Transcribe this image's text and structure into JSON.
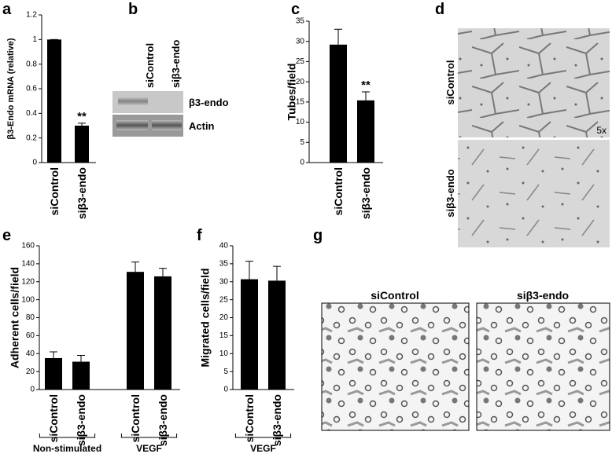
{
  "chart_data": [
    {
      "type": "bar",
      "panel": "a",
      "y_label": "β3-Endo mRNA (relative)",
      "categories": [
        "siControl",
        "siβ3-endo"
      ],
      "values": [
        1,
        0.3
      ],
      "errors": [
        0,
        0.02
      ],
      "annotations": [
        null,
        "**"
      ],
      "color": "#000000",
      "ylim": [
        0,
        1.2
      ],
      "yticks": [
        0,
        0.2,
        0.4,
        0.6,
        0.8,
        1,
        1.2
      ]
    },
    {
      "type": "bar",
      "panel": "c",
      "y_label": "Tubes/field",
      "categories": [
        "siControl",
        "siβ3-endo"
      ],
      "values": [
        29.2,
        15.4
      ],
      "errors": [
        3.8,
        2.1
      ],
      "annotations": [
        null,
        "**"
      ],
      "color": "#000000",
      "ylim": [
        0,
        35
      ],
      "yticks": [
        0,
        5,
        10,
        15,
        20,
        25,
        30,
        35
      ]
    },
    {
      "type": "bar",
      "panel": "e",
      "y_label": "Adherent cells/field",
      "groups": [
        {
          "name": "Non-stimulated",
          "categories": [
            "siControl",
            "siβ3-endo"
          ],
          "values": [
            35,
            31
          ],
          "errors": [
            7,
            7
          ]
        },
        {
          "name": "VEGF",
          "categories": [
            "siControl",
            "siβ3-endo"
          ],
          "values": [
            131,
            126
          ],
          "errors": [
            11,
            9
          ]
        }
      ],
      "color": "#000000",
      "ylim": [
        0,
        160
      ],
      "yticks": [
        0,
        20,
        40,
        60,
        80,
        100,
        120,
        140,
        160
      ]
    },
    {
      "type": "bar",
      "panel": "f",
      "y_label": "Migrated cells/field",
      "groups": [
        {
          "name": "VEGF",
          "categories": [
            "siControl",
            "siβ3-endo"
          ],
          "values": [
            30.7,
            30.3
          ],
          "errors": [
            5,
            4
          ]
        }
      ],
      "color": "#000000",
      "ylim": [
        0,
        40
      ],
      "yticks": [
        0,
        5,
        10,
        15,
        20,
        25,
        30,
        35,
        40
      ]
    }
  ],
  "blot": {
    "panel": "b",
    "lanes": [
      "siControl",
      "siβ3-endo"
    ],
    "bands": [
      "β3-endo",
      "Actin"
    ]
  },
  "tube_images": {
    "panel": "d",
    "rows": [
      "siControl",
      "siβ3-endo"
    ],
    "magnification": "5x"
  },
  "migration_images": {
    "panel": "g",
    "columns": [
      "siControl",
      "siβ3-endo"
    ]
  }
}
